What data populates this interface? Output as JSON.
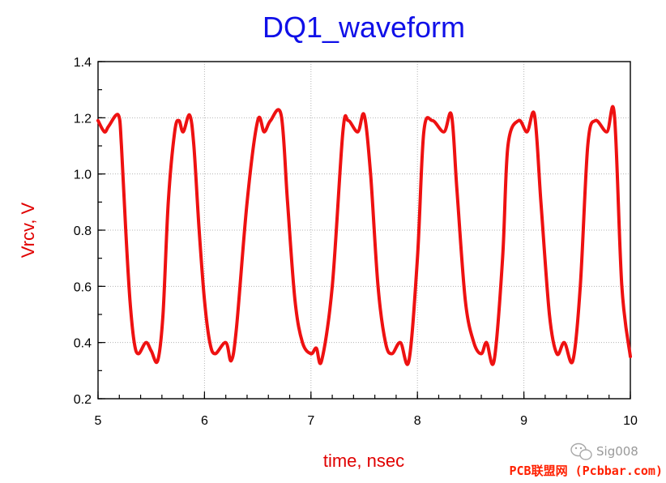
{
  "chart_data": {
    "type": "line",
    "title": "DQ1_waveform",
    "xlabel": "time, nsec",
    "ylabel": "Vrcv, V",
    "xlim": [
      5,
      10
    ],
    "ylim": [
      0.2,
      1.4
    ],
    "x_ticks": [
      "5",
      "6",
      "7",
      "8",
      "9",
      "10"
    ],
    "y_ticks": [
      "0.2",
      "0.4",
      "0.6",
      "0.8",
      "1.0",
      "1.2",
      "1.4"
    ],
    "grid": true,
    "colors": {
      "title": "#1010e8",
      "axis_label": "#e00000",
      "series": "#ee1111"
    },
    "series": [
      {
        "bit_period_ns": 0.5,
        "first_high_start": 5.04,
        "high_level": 1.19,
        "low_level": 0.36,
        "high_peak": 1.21,
        "low_dip": 0.335,
        "x": [
          5.0,
          5.06,
          5.1,
          5.19,
          5.22,
          5.26,
          5.3,
          5.34,
          5.38,
          5.45,
          5.5,
          5.56,
          5.61,
          5.66,
          5.72,
          5.76,
          5.8,
          5.86,
          5.9,
          5.95,
          6.0,
          6.05,
          6.1,
          6.2,
          6.25,
          6.3,
          6.4,
          6.5,
          6.56,
          6.62,
          6.72,
          6.78,
          6.85,
          6.92,
          7.0,
          7.05,
          7.1,
          7.2,
          7.3,
          7.35,
          7.44,
          7.5,
          7.56,
          7.63,
          7.7,
          7.76,
          7.84,
          7.92,
          8.0,
          8.06,
          8.14,
          8.25,
          8.32,
          8.37,
          8.45,
          8.53,
          8.6,
          8.65,
          8.72,
          8.8,
          8.85,
          8.95,
          9.03,
          9.1,
          9.16,
          9.24,
          9.31,
          9.38,
          9.46,
          9.53,
          9.6,
          9.67,
          9.78,
          9.85,
          9.92,
          10.0
        ],
        "y": [
          1.19,
          1.15,
          1.17,
          1.21,
          1.1,
          0.8,
          0.55,
          0.4,
          0.36,
          0.4,
          0.37,
          0.335,
          0.5,
          0.9,
          1.15,
          1.19,
          1.15,
          1.21,
          1.1,
          0.8,
          0.55,
          0.4,
          0.36,
          0.4,
          0.335,
          0.45,
          0.9,
          1.19,
          1.15,
          1.19,
          1.21,
          0.9,
          0.55,
          0.4,
          0.36,
          0.38,
          0.335,
          0.6,
          1.15,
          1.19,
          1.15,
          1.21,
          1.0,
          0.6,
          0.4,
          0.36,
          0.4,
          0.335,
          0.7,
          1.15,
          1.19,
          1.15,
          1.21,
          0.95,
          0.55,
          0.4,
          0.36,
          0.4,
          0.335,
          0.7,
          1.1,
          1.19,
          1.15,
          1.21,
          0.9,
          0.5,
          0.36,
          0.4,
          0.335,
          0.6,
          1.1,
          1.19,
          1.15,
          1.21,
          0.6,
          0.35
        ]
      }
    ]
  },
  "watermark": {
    "icon": "wechat-icon",
    "account": "Sig008",
    "footer": "PCB联盟网 (Pcbbar.com)"
  }
}
